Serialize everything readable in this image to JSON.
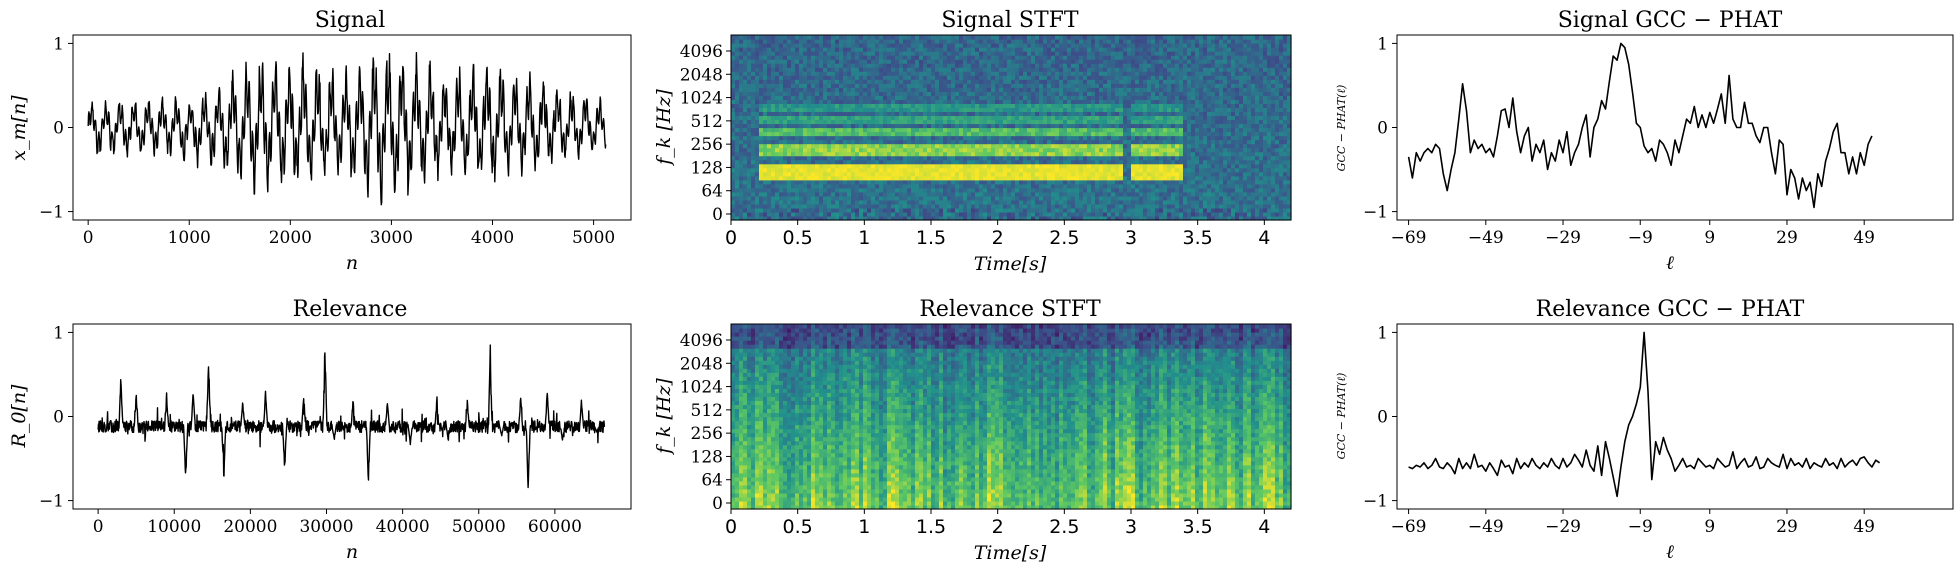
{
  "chart_data": [
    {
      "id": "signal",
      "type": "line",
      "title": "Signal",
      "xlabel": "n",
      "ylabel": "x_m[n]",
      "xlim": [
        -150,
        5370
      ],
      "ylim": [
        -1.1,
        1.1
      ],
      "xticks": [
        0,
        1000,
        2000,
        3000,
        4000,
        5000
      ],
      "yticks": [
        -1,
        0,
        1
      ],
      "series": [
        {
          "style": "dense-waveform",
          "x_range": [
            0,
            5120
          ],
          "envelope": [
            {
              "x": 0,
              "lo": -0.35,
              "hi": 0.3
            },
            {
              "x": 800,
              "lo": -0.35,
              "hi": 0.4
            },
            {
              "x": 1000,
              "lo": -0.45,
              "hi": 0.3
            },
            {
              "x": 1300,
              "lo": -0.55,
              "hi": 0.55
            },
            {
              "x": 1600,
              "lo": -0.8,
              "hi": 0.85
            },
            {
              "x": 2100,
              "lo": -0.7,
              "hi": 0.9
            },
            {
              "x": 2500,
              "lo": -0.6,
              "hi": 0.7
            },
            {
              "x": 2900,
              "lo": -1.0,
              "hi": 0.95
            },
            {
              "x": 3100,
              "lo": -0.9,
              "hi": 1.0
            },
            {
              "x": 3500,
              "lo": -0.6,
              "hi": 0.7
            },
            {
              "x": 4000,
              "lo": -0.7,
              "hi": 0.85
            },
            {
              "x": 4600,
              "lo": -0.45,
              "hi": 0.55
            },
            {
              "x": 5120,
              "lo": -0.3,
              "hi": 0.35
            }
          ]
        }
      ]
    },
    {
      "id": "signal-stft",
      "type": "heatmap",
      "title": "Signal STFT",
      "xlabel": "Time[s]",
      "ylabel": "f_k [Hz]",
      "xlim": [
        0,
        4.2
      ],
      "xticks": [
        "0",
        "0.5",
        "1",
        "1.5",
        "2",
        "2.5",
        "3",
        "3.5",
        "4"
      ],
      "yticks": [
        "0",
        "64",
        "128",
        "256",
        "512",
        "1024",
        "2048",
        "4096"
      ],
      "colormap": "viridis",
      "harmonic_segments": [
        {
          "t0": 0.2,
          "t1": 1.25
        },
        {
          "t0": 1.25,
          "t1": 1.85
        },
        {
          "t0": 1.85,
          "t1": 2.95
        },
        {
          "t0": 3.0,
          "t1": 3.38
        }
      ]
    },
    {
      "id": "signal-gcc",
      "type": "line",
      "title": "Signal GCC − PHAT",
      "xlabel": "ℓ",
      "ylabel": "GCC − PHAT(ℓ)",
      "xlim": [
        -72,
        72
      ],
      "ylim": [
        -1.1,
        1.1
      ],
      "xticks": [
        -69,
        -49,
        -29,
        -9,
        9,
        29,
        49
      ],
      "yticks": [
        -1,
        0,
        1
      ],
      "series": [
        {
          "x_start": -69,
          "x_step": 1,
          "values": [
            -0.35,
            -0.6,
            -0.3,
            -0.4,
            -0.3,
            -0.25,
            -0.3,
            -0.2,
            -0.25,
            -0.55,
            -0.75,
            -0.5,
            -0.3,
            0.1,
            0.52,
            0.2,
            -0.3,
            -0.15,
            -0.25,
            -0.2,
            -0.3,
            -0.25,
            -0.35,
            -0.1,
            0.2,
            0.22,
            0.0,
            0.35,
            -0.05,
            -0.3,
            -0.1,
            0.0,
            -0.4,
            -0.2,
            -0.3,
            -0.15,
            -0.5,
            -0.3,
            -0.4,
            -0.15,
            -0.3,
            -0.05,
            -0.45,
            -0.3,
            -0.2,
            0.0,
            0.15,
            -0.35,
            0.0,
            0.1,
            0.32,
            0.22,
            0.55,
            0.85,
            0.8,
            1.0,
            0.95,
            0.75,
            0.42,
            0.05,
            0.0,
            -0.22,
            -0.3,
            -0.25,
            -0.4,
            -0.15,
            -0.2,
            -0.3,
            -0.45,
            -0.15,
            -0.3,
            -0.1,
            0.1,
            0.05,
            0.25,
            0.0,
            0.15,
            0.0,
            0.18,
            0.05,
            0.22,
            0.4,
            0.05,
            0.62,
            0.1,
            0.0,
            0.0,
            0.3,
            0.05,
            0.05,
            -0.1,
            -0.18,
            0.0,
            0.0,
            -0.3,
            -0.55,
            -0.15,
            -0.2,
            -0.8,
            -0.5,
            -0.6,
            -0.85,
            -0.6,
            -0.75,
            -0.65,
            -0.95,
            -0.55,
            -0.7,
            -0.4,
            -0.25,
            -0.05,
            0.05,
            -0.3,
            -0.3,
            -0.55,
            -0.35,
            -0.55,
            -0.3,
            -0.45,
            -0.2,
            -0.1
          ]
        }
      ]
    },
    {
      "id": "relevance",
      "type": "line",
      "title": "Relevance",
      "xlabel": "n",
      "ylabel": "R_0[n]",
      "xlim": [
        -3300,
        70000
      ],
      "ylim": [
        -1.1,
        1.1
      ],
      "xticks": [
        0,
        10000,
        20000,
        30000,
        40000,
        50000,
        60000
      ],
      "yticks": [
        -1,
        0,
        1
      ],
      "series": [
        {
          "style": "dense-waveform",
          "x_range": [
            0,
            66500
          ],
          "baseline": -0.12,
          "spikes": [
            {
              "x": 3000,
              "v": 0.55
            },
            {
              "x": 5000,
              "v": 0.3
            },
            {
              "x": 9000,
              "v": 0.28
            },
            {
              "x": 11500,
              "v": -0.88
            },
            {
              "x": 12500,
              "v": 0.4
            },
            {
              "x": 14500,
              "v": 0.72
            },
            {
              "x": 16500,
              "v": -0.75
            },
            {
              "x": 19000,
              "v": 0.25
            },
            {
              "x": 22000,
              "v": 0.35
            },
            {
              "x": 24500,
              "v": -0.7
            },
            {
              "x": 27000,
              "v": 0.3
            },
            {
              "x": 29800,
              "v": 1.0
            },
            {
              "x": 31000,
              "v": -0.3
            },
            {
              "x": 33500,
              "v": 0.25
            },
            {
              "x": 35500,
              "v": -0.82
            },
            {
              "x": 38000,
              "v": 0.2
            },
            {
              "x": 41000,
              "v": -0.35
            },
            {
              "x": 44500,
              "v": 0.25
            },
            {
              "x": 46000,
              "v": -0.3
            },
            {
              "x": 48500,
              "v": 0.2
            },
            {
              "x": 51500,
              "v": 0.75
            },
            {
              "x": 53000,
              "v": -0.25
            },
            {
              "x": 55500,
              "v": 0.25
            },
            {
              "x": 56500,
              "v": -0.95
            },
            {
              "x": 59000,
              "v": 0.32
            },
            {
              "x": 61000,
              "v": -0.3
            },
            {
              "x": 63500,
              "v": 0.22
            },
            {
              "x": 65500,
              "v": -0.2
            }
          ]
        }
      ]
    },
    {
      "id": "relevance-stft",
      "type": "heatmap",
      "title": "Relevance STFT",
      "xlabel": "Time[s]",
      "ylabel": "f_k [Hz]",
      "xlim": [
        0,
        4.2
      ],
      "xticks": [
        "0",
        "0.5",
        "1",
        "1.5",
        "2",
        "2.5",
        "3",
        "3.5",
        "4"
      ],
      "yticks": [
        "0",
        "64",
        "128",
        "256",
        "512",
        "1024",
        "2048",
        "4096"
      ],
      "colormap": "viridis"
    },
    {
      "id": "relevance-gcc",
      "type": "line",
      "title": "Relevance GCC − PHAT",
      "xlabel": "ℓ",
      "ylabel": "GCC − PHAT(ℓ)",
      "xlim": [
        -72,
        72
      ],
      "ylim": [
        -1.1,
        1.1
      ],
      "xticks": [
        -69,
        -49,
        -29,
        -9,
        9,
        29,
        49
      ],
      "yticks": [
        -1,
        0,
        1
      ],
      "series": [
        {
          "x_start": -69,
          "x_step": 1,
          "values": [
            -0.6,
            -0.62,
            -0.58,
            -0.6,
            -0.55,
            -0.62,
            -0.58,
            -0.5,
            -0.6,
            -0.62,
            -0.55,
            -0.6,
            -0.68,
            -0.5,
            -0.62,
            -0.55,
            -0.62,
            -0.45,
            -0.6,
            -0.58,
            -0.65,
            -0.55,
            -0.62,
            -0.7,
            -0.52,
            -0.6,
            -0.58,
            -0.68,
            -0.5,
            -0.62,
            -0.55,
            -0.6,
            -0.5,
            -0.58,
            -0.62,
            -0.55,
            -0.6,
            -0.5,
            -0.58,
            -0.62,
            -0.5,
            -0.6,
            -0.55,
            -0.45,
            -0.52,
            -0.6,
            -0.4,
            -0.58,
            -0.65,
            -0.35,
            -0.7,
            -0.3,
            -0.5,
            -0.72,
            -0.95,
            -0.6,
            -0.3,
            -0.1,
            0.0,
            0.15,
            0.35,
            1.0,
            0.3,
            -0.75,
            -0.3,
            -0.45,
            -0.25,
            -0.4,
            -0.5,
            -0.65,
            -0.58,
            -0.5,
            -0.6,
            -0.58,
            -0.62,
            -0.5,
            -0.55,
            -0.6,
            -0.58,
            -0.62,
            -0.5,
            -0.55,
            -0.6,
            -0.58,
            -0.42,
            -0.62,
            -0.55,
            -0.5,
            -0.6,
            -0.58,
            -0.48,
            -0.62,
            -0.6,
            -0.5,
            -0.55,
            -0.58,
            -0.6,
            -0.45,
            -0.62,
            -0.5,
            -0.58,
            -0.55,
            -0.6,
            -0.5,
            -0.62,
            -0.55,
            -0.58,
            -0.6,
            -0.5,
            -0.58,
            -0.55,
            -0.62,
            -0.5,
            -0.6,
            -0.55,
            -0.52,
            -0.58,
            -0.5,
            -0.48,
            -0.55,
            -0.6,
            -0.52,
            -0.55
          ]
        }
      ]
    }
  ]
}
